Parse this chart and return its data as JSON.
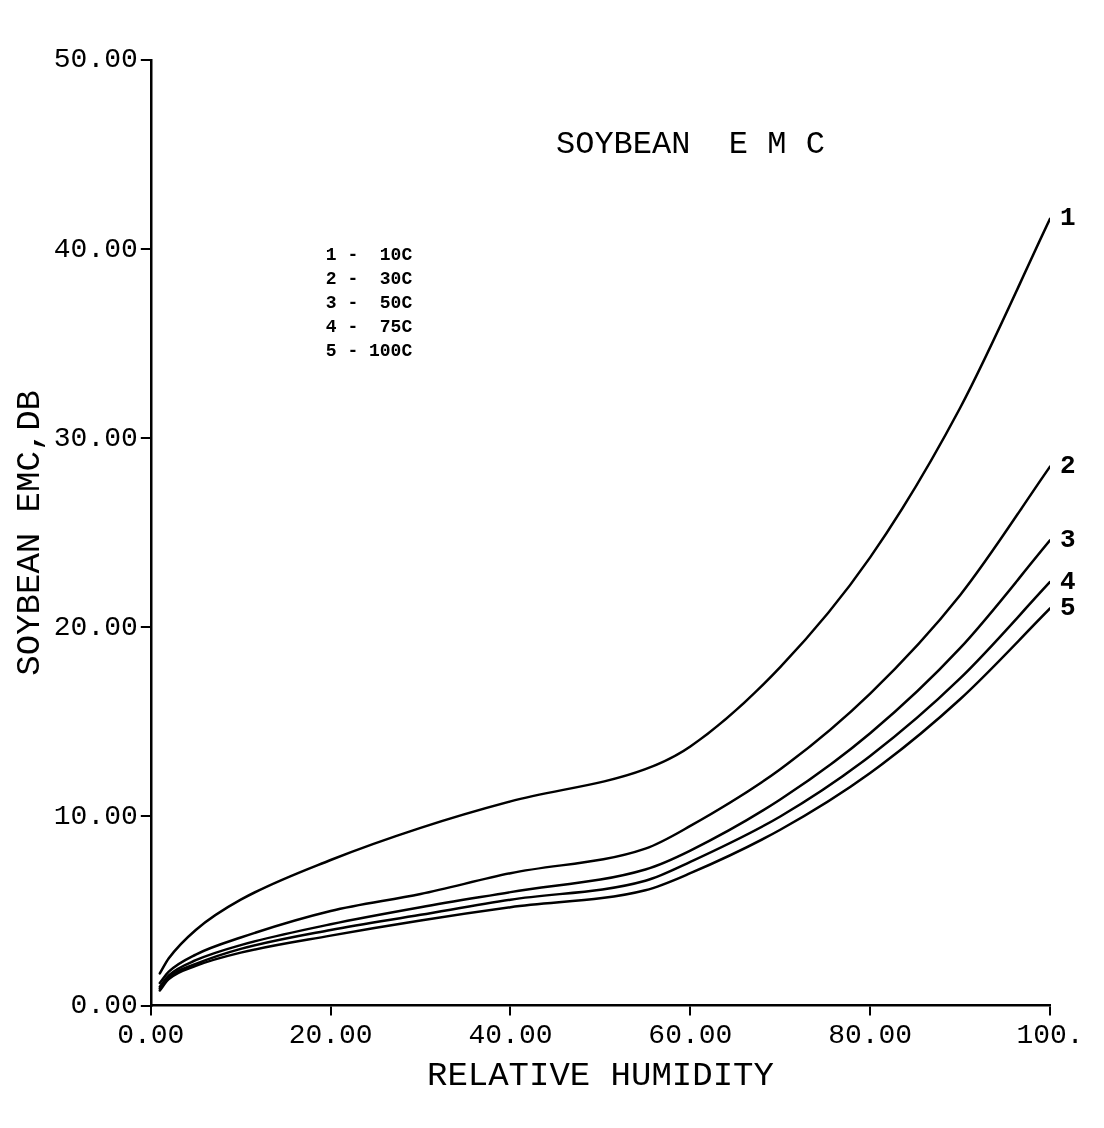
{
  "chart_data": {
    "type": "line",
    "title": "SOYBEAN  E M C",
    "xlabel": "RELATIVE HUMIDITY",
    "ylabel": "SOYBEAN EMC,DB",
    "x": [
      1,
      2,
      5,
      10,
      20,
      30,
      40,
      55,
      60,
      70,
      80,
      90,
      100
    ],
    "series": [
      {
        "name": "1",
        "color": "#000000",
        "values": [
          1.7,
          2.5,
          4.0,
          5.6,
          7.7,
          9.4,
          10.8,
          12.5,
          13.7,
          17.9,
          23.7,
          31.6,
          41.6
        ]
      },
      {
        "name": "2",
        "color": "#000000",
        "values": [
          1.2,
          1.8,
          2.7,
          3.6,
          5.0,
          5.9,
          7.0,
          8.3,
          9.5,
          12.5,
          16.5,
          21.7,
          28.5
        ]
      },
      {
        "name": "3",
        "color": "#000000",
        "values": [
          1.0,
          1.6,
          2.4,
          3.2,
          4.3,
          5.2,
          6.0,
          7.2,
          8.2,
          10.9,
          14.4,
          18.9,
          24.6
        ]
      },
      {
        "name": "4",
        "color": "#000000",
        "values": [
          0.9,
          1.5,
          2.2,
          3.0,
          4.0,
          4.8,
          5.6,
          6.6,
          7.6,
          10.0,
          13.2,
          17.3,
          22.4
        ]
      },
      {
        "name": "5",
        "color": "#000000",
        "values": [
          0.8,
          1.4,
          2.1,
          2.8,
          3.7,
          4.5,
          5.2,
          6.1,
          7.0,
          9.3,
          12.3,
          16.2,
          21.0
        ]
      }
    ],
    "xlim": [
      0,
      100
    ],
    "ylim": [
      0,
      50
    ],
    "xticks": [
      {
        "value": 0,
        "label": "0.00"
      },
      {
        "value": 20,
        "label": "20.00"
      },
      {
        "value": 40,
        "label": "40.00"
      },
      {
        "value": 60,
        "label": "60.00"
      },
      {
        "value": 80,
        "label": "80.00"
      },
      {
        "value": 100,
        "label": "100."
      }
    ],
    "yticks": [
      {
        "value": 0,
        "label": "0.00"
      },
      {
        "value": 10,
        "label": "10.00"
      },
      {
        "value": 20,
        "label": "20.00"
      },
      {
        "value": 30,
        "label": "30.00"
      },
      {
        "value": 40,
        "label": "40.00"
      },
      {
        "value": 50,
        "label": "50.00"
      }
    ],
    "annotations": [
      "1 -  10C",
      "2 -  30C",
      "3 -  50C",
      "4 -  75C",
      "5 - 100C"
    ],
    "grid": false,
    "legend": false,
    "marker": "none",
    "line_style": "solid"
  }
}
